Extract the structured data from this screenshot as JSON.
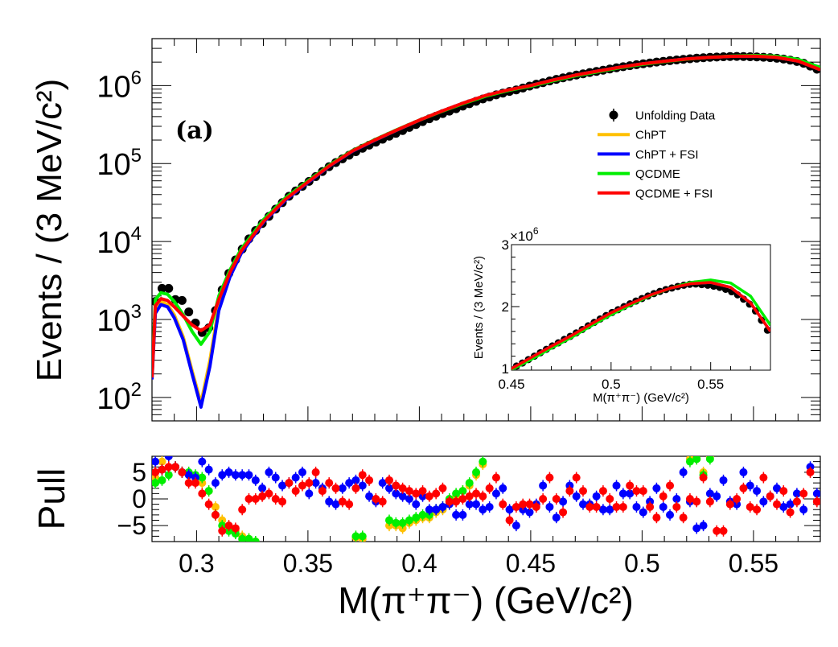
{
  "chart_data": [
    {
      "type": "line",
      "panel": "main",
      "annotation": "(a)",
      "ylabel": "Events / (3 MeV/c²)",
      "xlim": [
        0.28,
        0.58
      ],
      "ylim": [
        50,
        4000000
      ],
      "yscale": "log",
      "ytick_labels": [
        {
          "base": "10",
          "exp": "2",
          "value": 100
        },
        {
          "base": "10",
          "exp": "3",
          "value": 1000
        },
        {
          "base": "10",
          "exp": "4",
          "value": 10000
        },
        {
          "base": "10",
          "exp": "5",
          "value": 100000
        },
        {
          "base": "10",
          "exp": "6",
          "value": 1000000
        }
      ],
      "legend_position": "top-right",
      "legend": [
        {
          "label": "Unfolding Data",
          "color": "#000000",
          "marker": "point"
        },
        {
          "label": "ChPT",
          "color": "#ffc000",
          "marker": "line"
        },
        {
          "label": "ChPT + FSI",
          "color": "#0000ff",
          "marker": "line"
        },
        {
          "label": "QCDME",
          "color": "#00ee00",
          "marker": "line"
        },
        {
          "label": "QCDME + FSI",
          "color": "#ff0000",
          "marker": "line"
        }
      ],
      "data_points": {
        "name": "Unfolding Data",
        "x": [
          0.2815,
          0.2845,
          0.2875,
          0.2905,
          0.2935,
          0.2965,
          0.2995,
          0.3025,
          0.3055,
          0.3085,
          0.3115,
          0.3145,
          0.3175,
          0.3205,
          0.3235,
          0.3265,
          0.3295,
          0.3325,
          0.3355,
          0.3385,
          0.3415,
          0.3445,
          0.3475,
          0.3505,
          0.3535,
          0.3565,
          0.3595,
          0.3625,
          0.3655,
          0.3685,
          0.3715,
          0.3745,
          0.3775,
          0.3805,
          0.3835,
          0.3865,
          0.3895,
          0.3925,
          0.3955,
          0.3985,
          0.4015,
          0.4045,
          0.4075,
          0.4105,
          0.4135,
          0.4165,
          0.4195,
          0.4225,
          0.4255,
          0.4285,
          0.4315,
          0.4345,
          0.4375,
          0.4405,
          0.4435,
          0.4465,
          0.4495,
          0.4525,
          0.4555,
          0.4585,
          0.4615,
          0.4645,
          0.4675,
          0.4705,
          0.4735,
          0.4765,
          0.4795,
          0.4825,
          0.4855,
          0.4885,
          0.4915,
          0.4945,
          0.4975,
          0.5005,
          0.5035,
          0.5065,
          0.5095,
          0.5125,
          0.5155,
          0.5185,
          0.5215,
          0.5245,
          0.5275,
          0.5305,
          0.5335,
          0.5365,
          0.5395,
          0.5425,
          0.5455,
          0.5485,
          0.5515,
          0.5545,
          0.5575,
          0.5605,
          0.5635,
          0.5665,
          0.5695,
          0.5725,
          0.5755,
          0.5785
        ],
        "y": [
          1700,
          2500,
          2500,
          1800,
          1750,
          1250,
          900,
          680,
          780,
          1300,
          2400,
          3900,
          5800,
          8000,
          10800,
          13800,
          17000,
          21000,
          26000,
          31500,
          38000,
          44500,
          51000,
          59000,
          68000,
          79000,
          91000,
          103000,
          115000,
          128000,
          142000,
          157000,
          172000,
          188000,
          205000,
          224000,
          244000,
          265000,
          290000,
          316000,
          345000,
          375000,
          405000,
          437000,
          470000,
          505000,
          545000,
          585000,
          628000,
          672000,
          715000,
          760000,
          800000,
          840000,
          880000,
          930000,
          985000,
          1040000,
          1090000,
          1145000,
          1200000,
          1255000,
          1310000,
          1365000,
          1415000,
          1470000,
          1520000,
          1575000,
          1630000,
          1690000,
          1745000,
          1800000,
          1855000,
          1905000,
          1950000,
          2000000,
          2045000,
          2090000,
          2130000,
          2170000,
          2210000,
          2245000,
          2275000,
          2300000,
          2325000,
          2345000,
          2360000,
          2365000,
          2355000,
          2345000,
          2330000,
          2310000,
          2280000,
          2240000,
          2190000,
          2120000,
          2040000,
          1930000,
          1780000,
          1620000
        ]
      },
      "curves_x": [
        0.28,
        0.2815,
        0.284,
        0.287,
        0.29,
        0.294,
        0.298,
        0.302,
        0.306,
        0.31,
        0.315,
        0.32,
        0.33,
        0.34,
        0.35,
        0.36,
        0.37,
        0.38,
        0.39,
        0.4,
        0.41,
        0.42,
        0.43,
        0.44,
        0.45,
        0.46,
        0.47,
        0.48,
        0.49,
        0.5,
        0.51,
        0.52,
        0.53,
        0.54,
        0.55,
        0.56,
        0.57,
        0.58
      ],
      "series": [
        {
          "name": "ChPT",
          "color": "#ffc000",
          "values": [
            170,
            1300,
            1700,
            1550,
            1150,
            600,
            220,
            85,
            300,
            1500,
            3800,
            7300,
            17800,
            34500,
            57500,
            94500,
            144500,
            199000,
            269000,
            359000,
            469000,
            599000,
            749000,
            879000,
            1000000,
            1180000,
            1360000,
            1530000,
            1720000,
            1900000,
            2050000,
            2190000,
            2300000,
            2370000,
            2390000,
            2310000,
            2060000,
            1600000
          ]
        },
        {
          "name": "ChPT + FSI",
          "color": "#0000ff",
          "values": [
            170,
            1200,
            1550,
            1450,
            1050,
            550,
            200,
            75,
            250,
            1300,
            3500,
            7000,
            17500,
            34000,
            57000,
            94000,
            144000,
            199000,
            269000,
            359000,
            469000,
            599000,
            749000,
            879000,
            1000000,
            1180000,
            1360000,
            1530000,
            1720000,
            1900000,
            2050000,
            2190000,
            2300000,
            2370000,
            2390000,
            2310000,
            2060000,
            1600000
          ]
        },
        {
          "name": "QCDME",
          "color": "#00ee00",
          "values": [
            200,
            1800,
            2200,
            2100,
            1700,
            1150,
            700,
            480,
            700,
            2000,
            4300,
            8000,
            19000,
            36500,
            60000,
            97000,
            147000,
            202000,
            272000,
            360000,
            465000,
            590000,
            735000,
            865000,
            980000,
            1150000,
            1330000,
            1500000,
            1690000,
            1870000,
            2030000,
            2180000,
            2300000,
            2390000,
            2430000,
            2380000,
            2170000,
            1700000
          ]
        },
        {
          "name": "QCDME + FSI",
          "color": "#ff0000",
          "values": [
            180,
            1500,
            1850,
            1750,
            1450,
            1100,
            850,
            720,
            850,
            1800,
            4000,
            7500,
            18000,
            35000,
            58000,
            95000,
            145000,
            200000,
            270000,
            360000,
            470000,
            600000,
            750000,
            880000,
            1000000,
            1180000,
            1360000,
            1530000,
            1720000,
            1900000,
            2050000,
            2190000,
            2300000,
            2370000,
            2390000,
            2310000,
            2060000,
            1600000
          ]
        }
      ]
    },
    {
      "type": "line",
      "panel": "inset",
      "ylabel": "Events / (3 MeV/c²)",
      "xlabel": "M(π⁺π⁻) (GeV/c²)",
      "xlim": [
        0.45,
        0.58
      ],
      "ylim": [
        1,
        3
      ],
      "y_multiplier": "×10",
      "y_multiplier_exp": "6",
      "xtick_labels": [
        "0.45",
        "0.5",
        "0.55"
      ],
      "xticks": [
        0.45,
        0.5,
        0.55
      ],
      "ytick_labels": [
        "1",
        "2",
        "3"
      ],
      "yticks": [
        1,
        2,
        3
      ]
    },
    {
      "type": "scatter",
      "panel": "pull",
      "ylabel": "Pull",
      "xlabel": "M(π⁺π⁻) (GeV/c²)",
      "xlim": [
        0.28,
        0.58
      ],
      "ylim": [
        -8,
        8
      ],
      "xtick_labels": [
        "0.3",
        "0.35",
        "0.4",
        "0.45",
        "0.5",
        "0.55"
      ],
      "xticks": [
        0.3,
        0.35,
        0.4,
        0.45,
        0.5,
        0.55
      ],
      "ytick_labels": [
        "−5",
        "0",
        "5"
      ],
      "yticks": [
        -5,
        0,
        5
      ],
      "series": [
        {
          "name": "ChPT",
          "color": "#ffc000",
          "values": [
            4,
            7,
            8,
            6,
            5,
            4.5,
            4,
            3,
            1.5,
            -1.5,
            -4,
            -5.5,
            -6,
            -7,
            -7.5,
            -8,
            null,
            null,
            null,
            null,
            null,
            null,
            null,
            null,
            null,
            null,
            null,
            null,
            null,
            null,
            -7.2,
            -7.5,
            null,
            null,
            null,
            -5,
            -5,
            -5.5,
            -4.5,
            -4,
            -3.5,
            -3.5,
            -2.5,
            -2,
            -0.5,
            0.5,
            1.5,
            2.5,
            4.5,
            6.5,
            null,
            null,
            null,
            null,
            null,
            null,
            null,
            null,
            null,
            null,
            null,
            null,
            null,
            null,
            null,
            null,
            null,
            null,
            null,
            null,
            null,
            null,
            null,
            null,
            null,
            null,
            null,
            null,
            null,
            null,
            7.5,
            7.5,
            5,
            8,
            null,
            null,
            null,
            null,
            null,
            null,
            null,
            null,
            null,
            null,
            null,
            null,
            null,
            null,
            null,
            null
          ]
        },
        {
          "name": "QCDME",
          "color": "#00ee00",
          "values": [
            3,
            3.5,
            4.5,
            6,
            5,
            5,
            4.5,
            4,
            1.5,
            -3,
            -5,
            -6,
            -6.5,
            -7.5,
            -7.5,
            -8,
            null,
            null,
            null,
            null,
            null,
            null,
            null,
            null,
            null,
            null,
            null,
            null,
            null,
            null,
            -7,
            -7,
            null,
            null,
            null,
            -4,
            -4.5,
            -4.5,
            -4,
            -3.5,
            -3,
            -3,
            -2,
            -1.5,
            0,
            1,
            1.5,
            3,
            5,
            7,
            null,
            null,
            null,
            null,
            null,
            null,
            null,
            null,
            null,
            null,
            null,
            null,
            null,
            null,
            null,
            null,
            null,
            null,
            null,
            null,
            null,
            null,
            null,
            null,
            null,
            null,
            null,
            null,
            null,
            null,
            7,
            7.5,
            4.5,
            7.5,
            null,
            null,
            null,
            null,
            null,
            null,
            null,
            null,
            null,
            null,
            null,
            null,
            null,
            null,
            null,
            null
          ]
        },
        {
          "name": "ChPT + FSI",
          "color": "#0000ff",
          "values": [
            7,
            5.5,
            8,
            6,
            5,
            4.5,
            4,
            7,
            5.5,
            3,
            4.5,
            5,
            4.5,
            4.5,
            4.5,
            3.5,
            2,
            5,
            4,
            2.5,
            3,
            4,
            5,
            1,
            3,
            2,
            -0.5,
            -1,
            2,
            3,
            3.5,
            2.5,
            0.5,
            -0.5,
            3,
            2,
            1,
            0.5,
            0,
            -1,
            0.5,
            -2,
            -2,
            -1.5,
            -1,
            -3,
            -3,
            -1,
            -1,
            -2,
            -1.5,
            1,
            2,
            -2,
            -5,
            -2,
            -2.5,
            -1,
            2.5,
            -1.5,
            -3.5,
            -0.5,
            2.5,
            0.5,
            -1,
            -1,
            0.5,
            -2,
            -2,
            2.5,
            1,
            1,
            -1.5,
            -2.5,
            -0.5,
            2,
            -1.5,
            -3,
            0,
            5,
            -0.5,
            -5.5,
            -5,
            1,
            0.5,
            3.5,
            -0.5,
            -1,
            5,
            2.5,
            1.5,
            -0.5,
            0.5,
            2,
            -1.5,
            -1,
            1,
            -2,
            6,
            1
          ]
        },
        {
          "name": "QCDME + FSI",
          "color": "#ff0000",
          "values": [
            5,
            5.5,
            6,
            6,
            5,
            3,
            3,
            1,
            -1,
            -3,
            -6,
            -5,
            -5.5,
            -2,
            0,
            0,
            0.5,
            1,
            0,
            -0.5,
            3,
            1.5,
            2.5,
            3,
            5,
            1.5,
            3,
            2,
            -0.5,
            -1,
            2,
            4.5,
            3.5,
            0,
            -0.5,
            3.5,
            2.5,
            2,
            1.5,
            1,
            1.5,
            0.5,
            1,
            2,
            -0.5,
            -0.5,
            0,
            0.5,
            1,
            0.5,
            2,
            4,
            -1,
            -4,
            -1.5,
            -1,
            -1,
            -1.5,
            0,
            4,
            0,
            -2.5,
            1.5,
            4,
            1.5,
            -1.5,
            -1.5,
            1.5,
            0,
            -1.5,
            -1.5,
            2.5,
            1.5,
            1.5,
            -1.5,
            -3.5,
            0.5,
            2.5,
            -1.5,
            -3.5,
            0,
            -0.5,
            4,
            -0.5,
            -6,
            -6,
            -1,
            0,
            2,
            -1.5,
            -2,
            4,
            0.5,
            -1,
            1.5,
            -2.5,
            -0.5,
            1,
            5,
            -0.5
          ]
        }
      ]
    }
  ]
}
